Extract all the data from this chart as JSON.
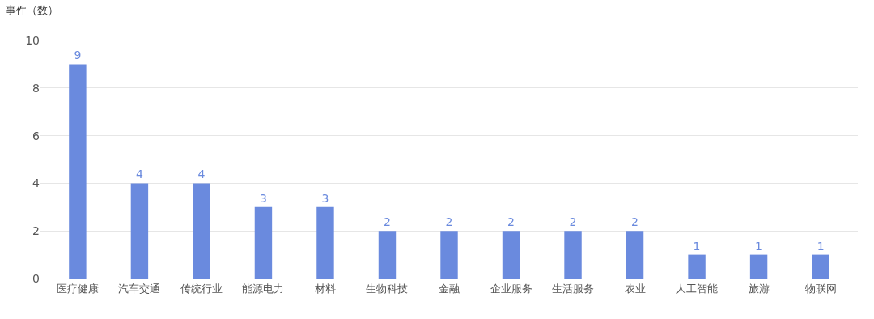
{
  "chart_data": {
    "type": "bar",
    "ylabel": "事件（数）",
    "categories": [
      "医疗健康",
      "汽车交通",
      "传统行业",
      "能源电力",
      "材料",
      "生物科技",
      "金融",
      "企业服务",
      "生活服务",
      "农业",
      "人工智能",
      "旅游",
      "物联网"
    ],
    "values": [
      9,
      4,
      4,
      3,
      3,
      2,
      2,
      2,
      2,
      2,
      1,
      1,
      1
    ],
    "color": "#6a8ade",
    "ylim": [
      0,
      10
    ],
    "yticks": [
      0,
      2,
      4,
      6,
      8,
      10
    ],
    "grid": "y",
    "data_labels": true
  }
}
